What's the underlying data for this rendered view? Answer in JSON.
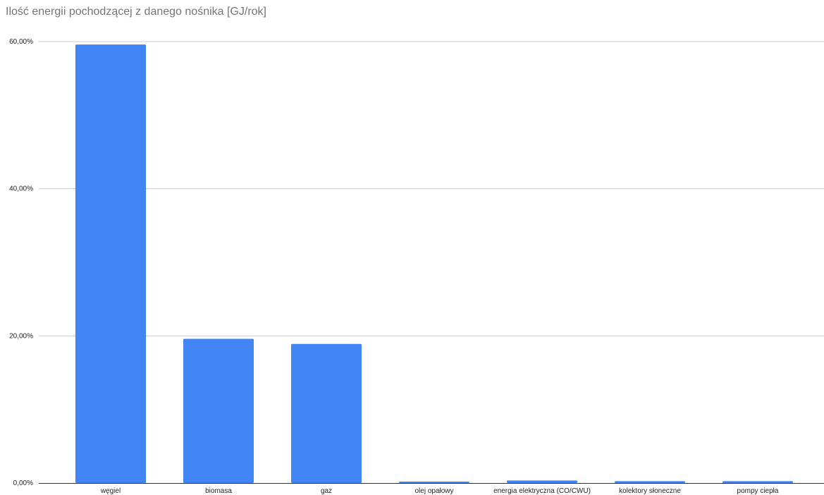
{
  "chart_data": {
    "type": "bar",
    "title": "Ilość energii pochodzącej z danego nośnika [GJ/rok]",
    "xlabel": "",
    "ylabel": "",
    "categories": [
      "węgiel",
      "biomasa",
      "gaz",
      "olej opałowy",
      "energia elektryczna (CO/CWU)",
      "kolektory słoneczne",
      "pompy ciepła"
    ],
    "values": [
      59.6,
      19.6,
      18.9,
      0.15,
      0.35,
      0.25,
      0.25
    ],
    "ylim": [
      0,
      60
    ],
    "yticks": [
      0,
      20,
      40,
      60
    ],
    "ytick_labels": [
      "0,00%",
      "20,00%",
      "40,00%",
      "60,00%"
    ],
    "grid": true,
    "legend": "none",
    "colors": {
      "bar": "#4285f4",
      "grid": "#cccccc",
      "axis": "#333333",
      "title": "#757575"
    }
  }
}
